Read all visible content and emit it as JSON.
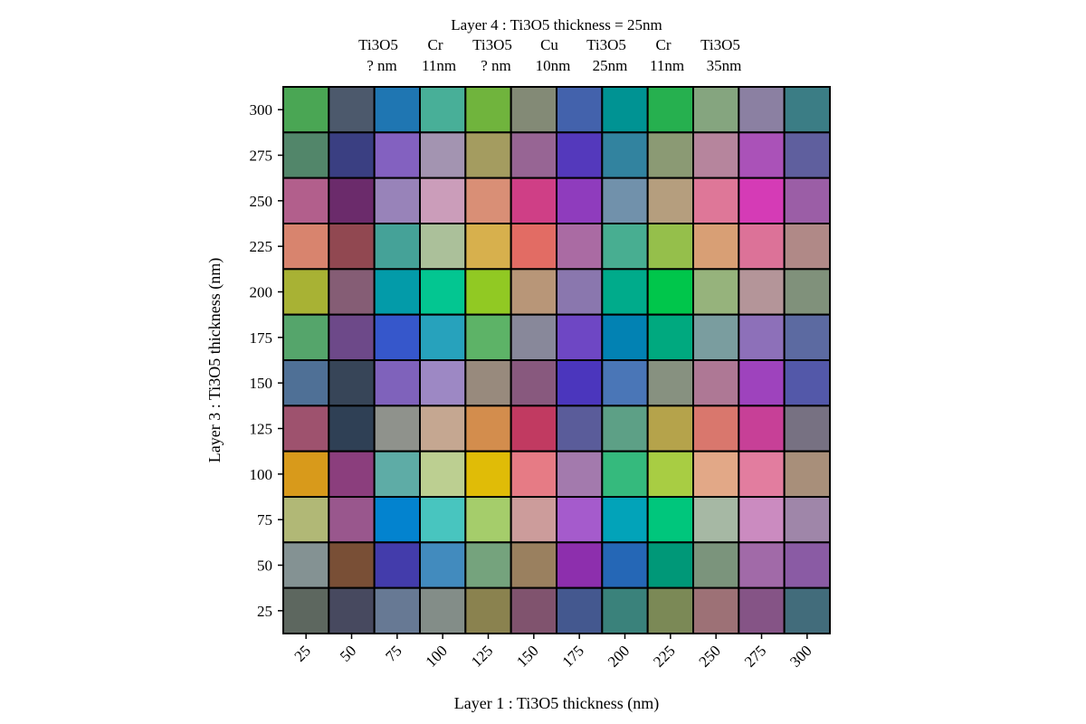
{
  "chart_data": {
    "type": "heatmap",
    "title_lines": [
      "Layer 4 : Ti3O5 thickness = 25nm"
    ],
    "layer_stack": [
      {
        "material": "Ti3O5",
        "thickness": "? nm"
      },
      {
        "material": "Cr",
        "thickness": "11nm"
      },
      {
        "material": "Ti3O5",
        "thickness": "? nm"
      },
      {
        "material": "Cu",
        "thickness": "10nm"
      },
      {
        "material": "Ti3O5",
        "thickness": "25nm"
      },
      {
        "material": "Cr",
        "thickness": "11nm"
      },
      {
        "material": "Ti3O5",
        "thickness": "35nm"
      }
    ],
    "xlabel": "Layer 1 : Ti3O5 thickness (nm)",
    "ylabel": "Layer 3 : Ti3O5 thickness (nm)",
    "x_ticks": [
      "25",
      "50",
      "75",
      "100",
      "125",
      "150",
      "175",
      "200",
      "225",
      "250",
      "275",
      "300"
    ],
    "y_ticks": [
      "300",
      "275",
      "250",
      "225",
      "200",
      "175",
      "150",
      "125",
      "100",
      "75",
      "50",
      "25"
    ],
    "cell_colors": [
      [
        "#4aa654",
        "#4c596c",
        "#1f76b2",
        "#48af98",
        "#70b43d",
        "#838a76",
        "#4362ac",
        "#009393",
        "#26b04f",
        "#85a57f",
        "#8b80a2",
        "#3b7d85"
      ],
      [
        "#52866a",
        "#3a3f82",
        "#8361c0",
        "#a394b1",
        "#a49c60",
        "#976594",
        "#5439bc",
        "#32839f",
        "#8b9a74",
        "#b6859d",
        "#aa52b8",
        "#5f5f9e"
      ],
      [
        "#b25f8c",
        "#6b2b6b",
        "#9883b9",
        "#cb9dba",
        "#d98f76",
        "#cf3f86",
        "#8f3cbd",
        "#7191ab",
        "#b59e7e",
        "#de7798",
        "#d53bb6",
        "#9b5ea6"
      ],
      [
        "#d8846e",
        "#914851",
        "#45a298",
        "#abc09a",
        "#d7b04d",
        "#e26c64",
        "#aa6ba3",
        "#48ae91",
        "#95bf4b",
        "#d89f75",
        "#dc7298",
        "#b08987"
      ],
      [
        "#a8b234",
        "#855d75",
        "#039ba9",
        "#03c691",
        "#91c923",
        "#b89678",
        "#8a77ae",
        "#00ab8b",
        "#00c64b",
        "#96b37c",
        "#b49599",
        "#80917b"
      ],
      [
        "#55a56b",
        "#6d4989",
        "#3657cb",
        "#27a2bc",
        "#5db367",
        "#88889a",
        "#6e47c4",
        "#0282b3",
        "#00a97f",
        "#7a9d9f",
        "#8d70b9",
        "#5c6aa1"
      ],
      [
        "#4f7096",
        "#374558",
        "#7f62bb",
        "#9d88c4",
        "#988a7d",
        "#88597e",
        "#4b36bd",
        "#4a76b7",
        "#879180",
        "#ae7895",
        "#9e43bd",
        "#5358a9"
      ],
      [
        "#9e526e",
        "#2f4055",
        "#8f928c",
        "#c5a791",
        "#d38d4d",
        "#c13a61",
        "#5a5c9a",
        "#5da086",
        "#b5a34b",
        "#d9776d",
        "#c74097",
        "#777182"
      ],
      [
        "#d89a1b",
        "#8b3e7d",
        "#5eaca6",
        "#bccf91",
        "#e0bc07",
        "#e67b85",
        "#a37aad",
        "#35ba7d",
        "#a8cd43",
        "#e2a887",
        "#e27d9f",
        "#a88f7a"
      ],
      [
        "#b1b876",
        "#99578d",
        "#0383cf",
        "#48c5bf",
        "#a5cd6b",
        "#cc9c9b",
        "#a55bcc",
        "#02a3b9",
        "#00c67c",
        "#a6b8a4",
        "#cb8bc0",
        "#9f86a9"
      ],
      [
        "#849293",
        "#794f36",
        "#433cab",
        "#428bbe",
        "#75a37d",
        "#9a805f",
        "#8d2fad",
        "#2567b6",
        "#009878",
        "#7b947c",
        "#a16aa8",
        "#8a5ba4"
      ],
      [
        "#5d675f",
        "#47495f",
        "#677994",
        "#838d88",
        "#8a824f",
        "#80536e",
        "#44588f",
        "#3a827b",
        "#7b8956",
        "#9d7176",
        "#855486",
        "#426c7b"
      ]
    ]
  }
}
